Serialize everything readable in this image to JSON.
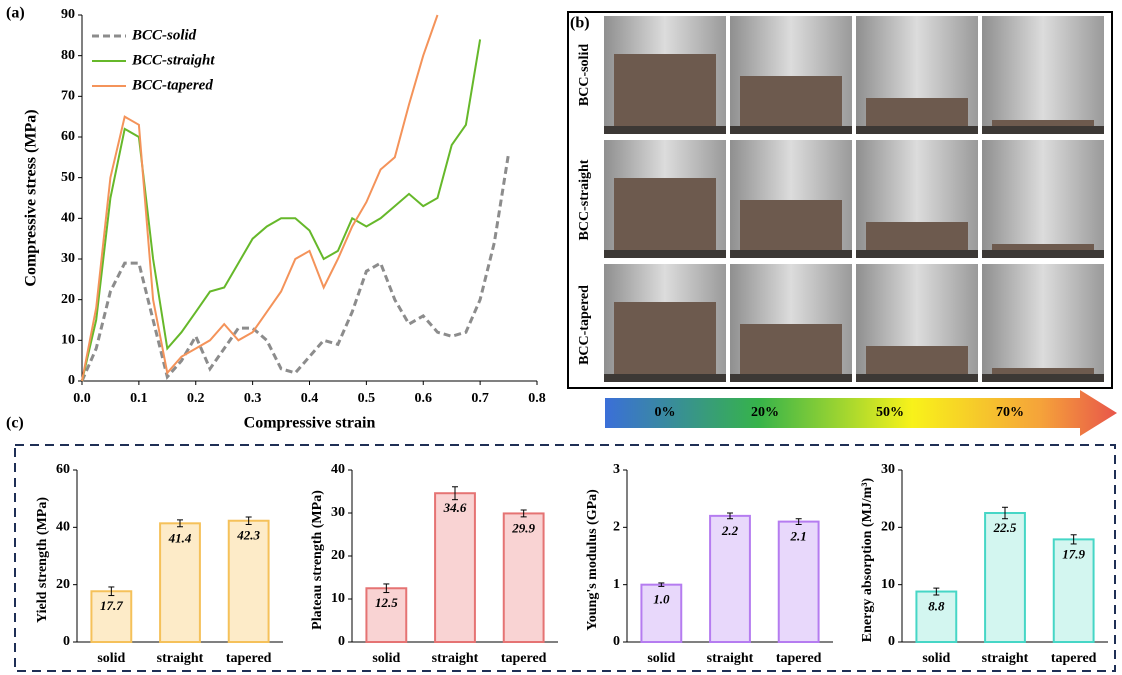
{
  "panel_labels": [
    "(a)",
    "(b)",
    "(c)"
  ],
  "photos": {
    "rows": [
      "BCC-solid",
      "BCC-straight",
      "BCC-tapered"
    ],
    "strain_scale": [
      "0%",
      "20%",
      "50%",
      "70%"
    ]
  },
  "chart_data": [
    {
      "type": "line",
      "x_label": "Compressive strain",
      "y_label": "Compressive stress (MPa)",
      "x": [
        0,
        0.025,
        0.05,
        0.075,
        0.1,
        0.125,
        0.15,
        0.175,
        0.2,
        0.225,
        0.25,
        0.275,
        0.3,
        0.325,
        0.35,
        0.375,
        0.4,
        0.425,
        0.45,
        0.475,
        0.5,
        0.525,
        0.55,
        0.575,
        0.6,
        0.625,
        0.65,
        0.675,
        0.7,
        0.725,
        0.75
      ],
      "series": [
        {
          "name": "BCC-solid",
          "color": "#8c8c8c",
          "line_style": "dashed",
          "values": [
            0,
            8,
            22,
            29,
            29,
            15,
            1,
            5,
            11,
            3,
            8,
            13,
            13,
            10,
            3,
            2,
            6,
            10,
            9,
            17,
            27,
            29,
            20,
            14,
            16,
            12,
            11,
            12,
            20,
            34,
            56
          ]
        },
        {
          "name": "BCC-straight",
          "color": "#66b82a",
          "line_style": "solid",
          "values": [
            0,
            15,
            45,
            62,
            60,
            30,
            8,
            12,
            17,
            22,
            23,
            29,
            35,
            38,
            40,
            40,
            37,
            30,
            32,
            40,
            38,
            40,
            43,
            46,
            43,
            45,
            58,
            63,
            84,
            null,
            null
          ]
        },
        {
          "name": "BCC-tapered",
          "color": "#f4935a",
          "line_style": "solid",
          "values": [
            0,
            18,
            50,
            65,
            63,
            20,
            2,
            6,
            8,
            10,
            14,
            10,
            12,
            17,
            22,
            30,
            32,
            23,
            30,
            38,
            44,
            52,
            55,
            68,
            80,
            90,
            null,
            null,
            null,
            null,
            null
          ]
        }
      ],
      "xlim": [
        0,
        0.8
      ],
      "xticks": [
        {
          "value": 0,
          "label": "0.0"
        },
        0.1,
        0.2,
        0.3,
        0.4,
        0.5,
        0.6,
        0.7,
        0.8
      ],
      "ylim": [
        0,
        90
      ],
      "yticks": [
        0,
        10,
        20,
        30,
        40,
        50,
        60,
        70,
        80,
        90
      ],
      "legend": "upper-left"
    },
    {
      "type": "bar",
      "y_label": "Yield strength (MPa)",
      "categories": [
        "solid",
        "straight",
        "tapered"
      ],
      "values": [
        17.7,
        41.4,
        42.3
      ],
      "errors": [
        1.5,
        1.2,
        1.3
      ],
      "color": "#fdebc8",
      "edge_color": "#f5c15a",
      "ylim": [
        0,
        60
      ],
      "yticks": [
        0,
        20,
        40,
        60
      ]
    },
    {
      "type": "bar",
      "y_label": "Plateau strength (MPa)",
      "categories": [
        "solid",
        "straight",
        "tapered"
      ],
      "values": [
        12.5,
        34.6,
        29.9
      ],
      "errors": [
        1,
        1.5,
        0.8
      ],
      "color": "#f9d3d3",
      "edge_color": "#e57373",
      "ylim": [
        0,
        40
      ],
      "yticks": [
        0,
        10,
        20,
        30,
        40
      ]
    },
    {
      "type": "bar",
      "y_label": "Young's modulus (GPa)",
      "categories": [
        "solid",
        "straight",
        "tapered"
      ],
      "values": [
        1.0,
        2.2,
        2.1
      ],
      "value_labels": [
        "1.0",
        "2.2",
        "2.1"
      ],
      "errors": [
        0.03,
        0.05,
        0.05
      ],
      "color": "#e8d8fb",
      "edge_color": "#b57cf0",
      "ylim": [
        0,
        3
      ],
      "yticks": [
        0,
        1,
        2,
        3
      ]
    },
    {
      "type": "bar",
      "y_label": "Energy absorption (MJ/m³)",
      "categories": [
        "solid",
        "straight",
        "tapered"
      ],
      "values": [
        8.8,
        22.5,
        17.9
      ],
      "errors": [
        0.6,
        1,
        0.8
      ],
      "color": "#d3f6f0",
      "edge_color": "#46d6c6",
      "ylim": [
        0,
        30
      ],
      "yticks": [
        0,
        10,
        20,
        30
      ]
    }
  ]
}
